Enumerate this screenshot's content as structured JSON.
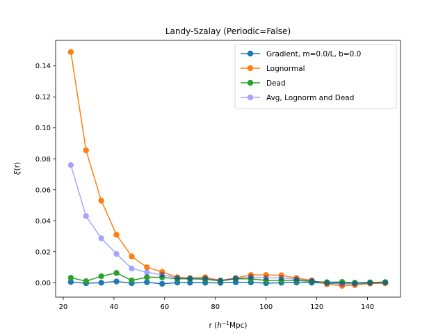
{
  "chart_data": {
    "type": "line",
    "title": "Landy-Szalay (Periodic=False)",
    "xlabel_prefix": "r (",
    "xlabel_h": "h",
    "xlabel_exp": "−1",
    "xlabel_suffix": "Mpc)",
    "ylabel_xi": "ξ",
    "ylabel_rest": "(r)",
    "xlim": [
      17,
      153
    ],
    "ylim": [
      -0.0093,
      0.1565
    ],
    "xticks": [
      20,
      40,
      60,
      80,
      100,
      120,
      140
    ],
    "yticks": [
      0.0,
      0.02,
      0.04,
      0.06,
      0.08,
      0.1,
      0.12,
      0.14
    ],
    "ytick_labels": [
      "0.00",
      "0.02",
      "0.04",
      "0.06",
      "0.08",
      "0.10",
      "0.12",
      "0.14"
    ],
    "legend_position": "top-right",
    "x": [
      23,
      29,
      35,
      41,
      47,
      53,
      59,
      65,
      70,
      76,
      82,
      88,
      94,
      100,
      106,
      112,
      118,
      124,
      130,
      135,
      141,
      147
    ],
    "series": [
      {
        "name": "Gradient, m=0.0/L, b=0.0",
        "color": "#1f77b4",
        "opacity": 1,
        "values": [
          0.0005,
          -0.0003,
          0.0,
          0.0008,
          -0.0003,
          0.0003,
          -0.0007,
          0.0001,
          0.0,
          0.0,
          -0.0001,
          0.0003,
          0.0002,
          -0.0003,
          0.0,
          0.0001,
          0.0,
          -0.0002,
          -0.0001,
          -0.0002,
          -0.0001,
          -0.0002
        ]
      },
      {
        "name": "Lognormal",
        "color": "#ff7f0e",
        "opacity": 1,
        "values": [
          0.149,
          0.0855,
          0.053,
          0.031,
          0.017,
          0.01,
          0.007,
          0.0035,
          0.003,
          0.0035,
          0.0015,
          0.003,
          0.005,
          0.005,
          0.0048,
          0.003,
          0.0015,
          -0.001,
          -0.002,
          -0.0015,
          -0.0005,
          -0.0003
        ]
      },
      {
        "name": "Dead",
        "color": "#2ca02c",
        "opacity": 1,
        "values": [
          0.0032,
          0.001,
          0.0042,
          0.0063,
          0.0015,
          0.0035,
          0.0035,
          0.0025,
          0.0025,
          0.0022,
          0.0012,
          0.0025,
          0.0025,
          0.0015,
          0.0015,
          0.0015,
          0.0008,
          0.0003,
          0.0005,
          0.0,
          0.0002,
          0.0004
        ]
      },
      {
        "name": "Avg, Lognorm and Dead",
        "color": "#0000ff",
        "opacity": 0.35,
        "values": [
          0.076,
          0.043,
          0.0287,
          0.0186,
          0.0092,
          0.0067,
          0.0052,
          0.003,
          0.0027,
          0.0028,
          0.0013,
          0.0027,
          0.0037,
          0.0032,
          0.0031,
          0.0022,
          0.0012,
          -0.0003,
          -0.0008,
          -0.0007,
          -0.0002,
          0.0
        ]
      }
    ]
  }
}
